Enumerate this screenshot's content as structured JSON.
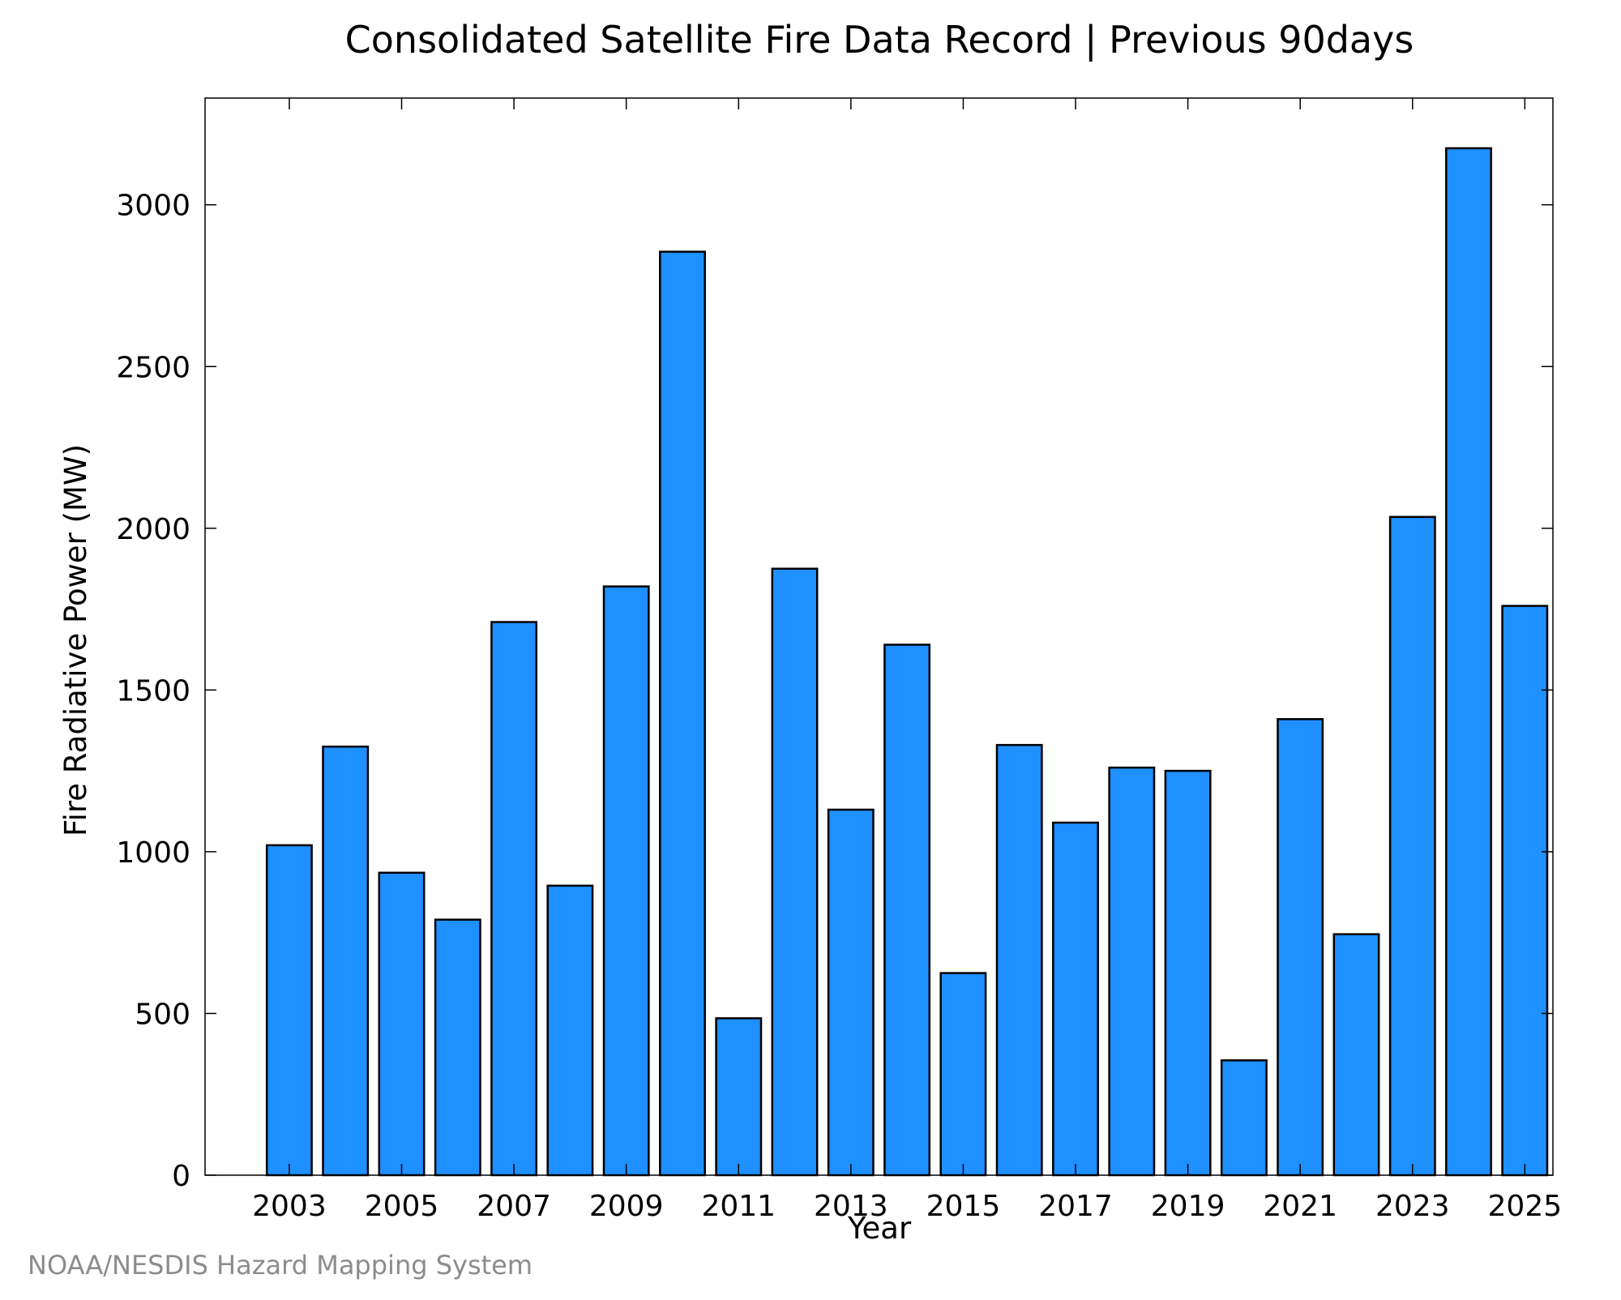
{
  "chart_data": {
    "type": "bar",
    "title": "Consolidated Satellite Fire Data Record | Previous 90days",
    "xlabel": "Year",
    "ylabel": "Fire Radiative Power (MW)",
    "categories": [
      "2003",
      "2004",
      "2005",
      "2006",
      "2007",
      "2008",
      "2009",
      "2010",
      "2011",
      "2012",
      "2013",
      "2014",
      "2015",
      "2016",
      "2017",
      "2018",
      "2019",
      "2020",
      "2021",
      "2022",
      "2023",
      "2024",
      "2025"
    ],
    "values": [
      1020,
      1325,
      935,
      790,
      1710,
      895,
      1820,
      2855,
      485,
      1875,
      1130,
      1640,
      625,
      1330,
      1090,
      1260,
      1250,
      355,
      1410,
      745,
      2035,
      3175,
      1760
    ],
    "ylim": [
      0,
      3330
    ],
    "xlim": [
      2001.5,
      2025.5
    ],
    "yticks": [
      "0",
      "500",
      "1000",
      "1500",
      "2000",
      "2500",
      "3000"
    ],
    "xticks": [
      "2003",
      "2005",
      "2007",
      "2009",
      "2011",
      "2013",
      "2015",
      "2017",
      "2019",
      "2021",
      "2023",
      "2025"
    ],
    "bar_color": "#1e90ff",
    "bar_edge_color": "#000000",
    "grid": false,
    "credit": "NOAA/NESDIS Hazard Mapping System"
  }
}
